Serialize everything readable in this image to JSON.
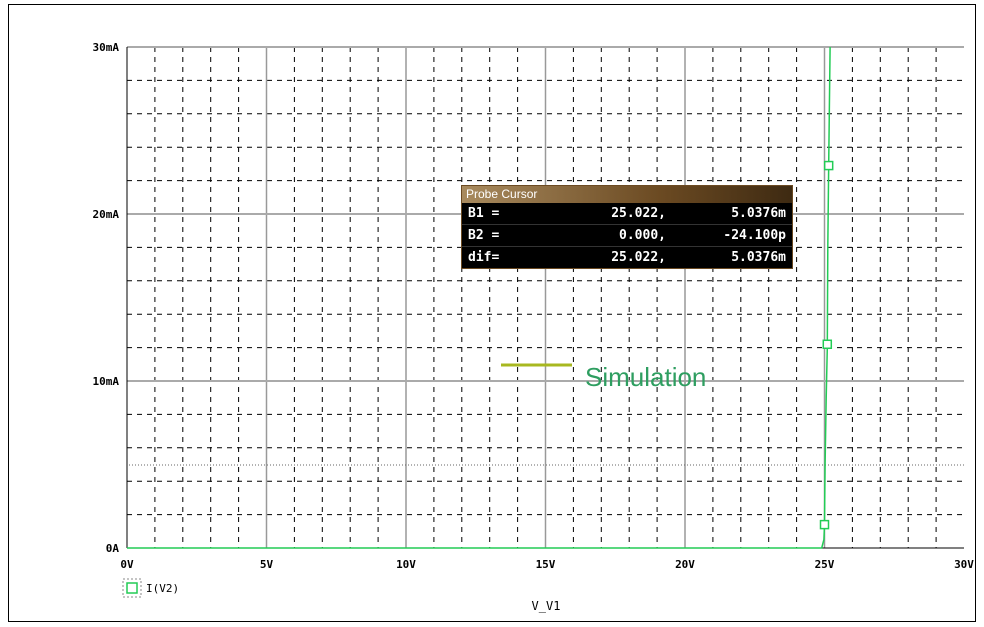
{
  "probe_cursor": {
    "title": "Probe Cursor",
    "rows": [
      {
        "label": "B1 =",
        "x": "25.022,",
        "y": "5.0376m"
      },
      {
        "label": "B2 =",
        "x": "0.000,",
        "y": "-24.100p"
      },
      {
        "label": "dif=",
        "x": "25.022,",
        "y": "5.0376m"
      }
    ]
  },
  "annotation": {
    "text": "Simulation",
    "line_color": "#a8b820"
  },
  "chart_data": {
    "type": "line",
    "xlabel": "V_V1",
    "ylabel": "",
    "xlim": [
      0,
      30
    ],
    "ylim": [
      0,
      30
    ],
    "x_ticks": [
      {
        "value": 0,
        "label": "0V"
      },
      {
        "value": 5,
        "label": "5V"
      },
      {
        "value": 10,
        "label": "10V"
      },
      {
        "value": 15,
        "label": "15V"
      },
      {
        "value": 20,
        "label": "20V"
      },
      {
        "value": 25,
        "label": "25V"
      },
      {
        "value": 30,
        "label": "30V"
      }
    ],
    "y_ticks": [
      {
        "value": 0,
        "label": "0A"
      },
      {
        "value": 10,
        "label": "10mA"
      },
      {
        "value": 20,
        "label": "20mA"
      },
      {
        "value": 30,
        "label": "30mA"
      }
    ],
    "grid": true,
    "legend": "bottom-left",
    "series": [
      {
        "name": "I(V2)",
        "color": "#22cc55",
        "marker": "square",
        "x": [
          0,
          24.9,
          24.98,
          25.0,
          25.02,
          25.06,
          25.1,
          25.12,
          25.15,
          25.2
        ],
        "y": [
          0,
          0,
          0.5,
          1.4,
          5.0376,
          9,
          12,
          18,
          23,
          30
        ],
        "marker_points": [
          {
            "x": 25.0,
            "y": 1.4
          },
          {
            "x": 25.1,
            "y": 12.2
          },
          {
            "x": 25.15,
            "y": 22.9
          }
        ]
      }
    ]
  }
}
